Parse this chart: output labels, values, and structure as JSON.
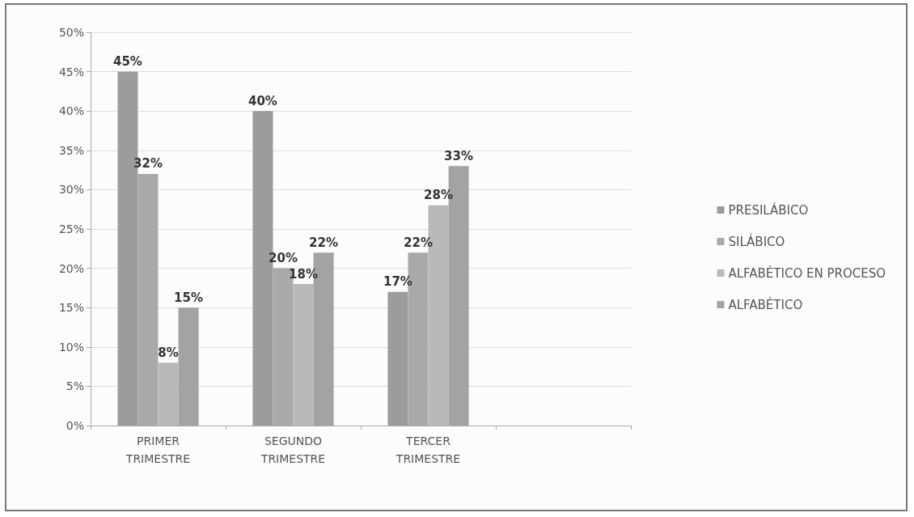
{
  "chart_data": {
    "type": "bar",
    "categories": [
      "PRIMER TRIMESTRE",
      "SEGUNDO TRIMESTRE",
      "TERCER TRIMESTRE",
      null
    ],
    "series": [
      {
        "name": "PRESILÁBICO",
        "color": "#9c9c9c",
        "values": [
          45,
          40,
          17,
          null
        ],
        "value_labels": [
          "45%",
          "40%",
          "17%",
          null
        ]
      },
      {
        "name": "SILÁBICO",
        "color": "#a9a9a9",
        "values": [
          32,
          20,
          22,
          null
        ],
        "value_labels": [
          "32%",
          "20%",
          "22%",
          null
        ]
      },
      {
        "name": "ALFABÉTICO EN PROCESO",
        "color": "#b9b9b9",
        "values": [
          8,
          18,
          28,
          null
        ],
        "value_labels": [
          "8%",
          "18%",
          "28%",
          null
        ]
      },
      {
        "name": "ALFABÉTICO",
        "color": "#a3a3a3",
        "values": [
          15,
          22,
          33,
          null
        ],
        "value_labels": [
          "15%",
          "22%",
          "33%",
          null
        ]
      }
    ],
    "ylim": [
      0,
      50
    ],
    "yticks": [
      {
        "value": 0,
        "label": "0%"
      },
      {
        "value": 5,
        "label": "5%"
      },
      {
        "value": 10,
        "label": "10%"
      },
      {
        "value": 15,
        "label": "15%"
      },
      {
        "value": 20,
        "label": "20%"
      },
      {
        "value": 25,
        "label": "25%"
      },
      {
        "value": 30,
        "label": "30%"
      },
      {
        "value": 35,
        "label": "35%"
      },
      {
        "value": 40,
        "label": "40%"
      },
      {
        "value": 45,
        "label": "45%"
      },
      {
        "value": 50,
        "label": "50%"
      }
    ],
    "grid": "y",
    "legend": "right"
  }
}
